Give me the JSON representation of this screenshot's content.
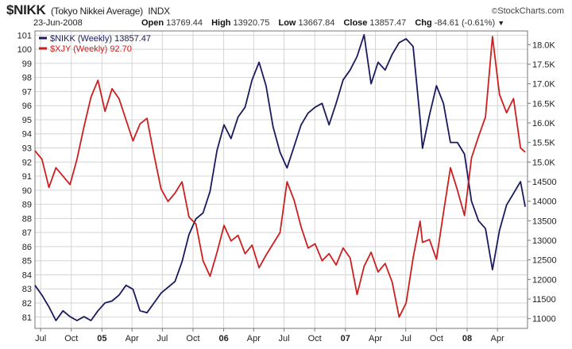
{
  "header": {
    "symbol": "$NIKK",
    "name": "(Tokyo Nikkei Average)",
    "exchange": "INDX",
    "date": "23-Jun-2008",
    "open_label": "Open",
    "open": "13769.44",
    "high_label": "High",
    "high": "13920.75",
    "low_label": "Low",
    "low": "13667.84",
    "close_label": "Close",
    "close": "13857.47",
    "chg_label": "Chg",
    "chg": "-84.61 (-0.61%)",
    "credit": "StockCharts.com"
  },
  "colors": {
    "nikk": "#1a1a5e",
    "xjy": "#cc1f1f",
    "grid": "#d4d4d4",
    "frame": "#777777"
  },
  "chart_data": {
    "type": "line",
    "x_axis": {
      "type": "date",
      "range": [
        "2004-06-14",
        "2008-06-30"
      ],
      "ticks": [
        {
          "date": "2004-07-01",
          "label": "Jul",
          "bold": false
        },
        {
          "date": "2004-10-01",
          "label": "Oct",
          "bold": false
        },
        {
          "date": "2005-01-01",
          "label": "05",
          "bold": true
        },
        {
          "date": "2005-04-01",
          "label": "Apr",
          "bold": false
        },
        {
          "date": "2005-07-01",
          "label": "Jul",
          "bold": false
        },
        {
          "date": "2005-10-01",
          "label": "Oct",
          "bold": false
        },
        {
          "date": "2006-01-01",
          "label": "06",
          "bold": true
        },
        {
          "date": "2006-04-01",
          "label": "Apr",
          "bold": false
        },
        {
          "date": "2006-07-01",
          "label": "Jul",
          "bold": false
        },
        {
          "date": "2006-10-01",
          "label": "Oct",
          "bold": false
        },
        {
          "date": "2007-01-01",
          "label": "07",
          "bold": true
        },
        {
          "date": "2007-04-01",
          "label": "Apr",
          "bold": false
        },
        {
          "date": "2007-07-01",
          "label": "Jul",
          "bold": false
        },
        {
          "date": "2007-10-01",
          "label": "Oct",
          "bold": false
        },
        {
          "date": "2008-01-01",
          "label": "08",
          "bold": true
        },
        {
          "date": "2008-04-01",
          "label": "Apr",
          "bold": false
        }
      ]
    },
    "left_axis": {
      "range": [
        80.2,
        101.3
      ],
      "ticks": [
        81,
        82,
        83,
        84,
        85,
        86,
        87,
        88,
        89,
        90,
        91,
        92,
        93,
        94,
        95,
        96,
        97,
        98,
        99,
        100,
        101
      ]
    },
    "right_axis": {
      "range": [
        10750,
        18350
      ],
      "ticks": [
        11000,
        11500,
        12000,
        12500,
        13000,
        13500,
        14000,
        14500,
        15000,
        15500,
        16000,
        16500,
        17000,
        17500,
        18000
      ],
      "tick_labels": [
        "11000",
        "11500",
        "12000",
        "12500",
        "13000",
        "13500",
        "14000",
        "14500",
        "15.0K",
        "15.5K",
        "16.0K",
        "16.5K",
        "17.0K",
        "17.5K",
        "18.0K"
      ]
    },
    "grid": true,
    "legend": {
      "placement": "top-left",
      "entries": [
        {
          "label": "$NIKK (Weekly) 13857.47"
        },
        {
          "label": "$XJY (Weekly) 92.70"
        }
      ]
    },
    "series": [
      {
        "name": "$NIKK (Weekly)",
        "axis": "right",
        "points": [
          [
            "2004-06-14",
            11850
          ],
          [
            "2004-07-05",
            11600
          ],
          [
            "2004-07-26",
            11300
          ],
          [
            "2004-08-16",
            10950
          ],
          [
            "2004-09-06",
            11200
          ],
          [
            "2004-09-27",
            11050
          ],
          [
            "2004-10-18",
            10950
          ],
          [
            "2004-11-08",
            11050
          ],
          [
            "2004-11-29",
            10950
          ],
          [
            "2004-12-20",
            11200
          ],
          [
            "2005-01-10",
            11400
          ],
          [
            "2005-01-31",
            11450
          ],
          [
            "2005-02-21",
            11600
          ],
          [
            "2005-03-14",
            11850
          ],
          [
            "2005-04-04",
            11750
          ],
          [
            "2005-04-25",
            11200
          ],
          [
            "2005-05-16",
            11150
          ],
          [
            "2005-06-06",
            11400
          ],
          [
            "2005-06-27",
            11650
          ],
          [
            "2005-07-18",
            11800
          ],
          [
            "2005-08-08",
            11950
          ],
          [
            "2005-08-29",
            12450
          ],
          [
            "2005-09-19",
            13150
          ],
          [
            "2005-10-10",
            13550
          ],
          [
            "2005-10-31",
            13700
          ],
          [
            "2005-11-21",
            14250
          ],
          [
            "2005-12-12",
            15300
          ],
          [
            "2006-01-02",
            15950
          ],
          [
            "2006-01-23",
            15600
          ],
          [
            "2006-02-13",
            16150
          ],
          [
            "2006-03-06",
            16400
          ],
          [
            "2006-03-27",
            17100
          ],
          [
            "2006-04-17",
            17550
          ],
          [
            "2006-05-08",
            16950
          ],
          [
            "2006-05-29",
            15900
          ],
          [
            "2006-06-19",
            15250
          ],
          [
            "2006-07-10",
            14850
          ],
          [
            "2006-07-31",
            15400
          ],
          [
            "2006-08-21",
            15950
          ],
          [
            "2006-09-11",
            16250
          ],
          [
            "2006-10-02",
            16400
          ],
          [
            "2006-10-23",
            16500
          ],
          [
            "2006-11-13",
            15950
          ],
          [
            "2006-12-04",
            16500
          ],
          [
            "2006-12-25",
            17100
          ],
          [
            "2007-01-15",
            17350
          ],
          [
            "2007-02-05",
            17700
          ],
          [
            "2007-02-26",
            18250
          ],
          [
            "2007-03-19",
            17000
          ],
          [
            "2007-04-09",
            17550
          ],
          [
            "2007-04-30",
            17350
          ],
          [
            "2007-05-21",
            17750
          ],
          [
            "2007-06-11",
            18050
          ],
          [
            "2007-07-02",
            18150
          ],
          [
            "2007-07-23",
            17950
          ],
          [
            "2007-08-13",
            16100
          ],
          [
            "2007-08-20",
            15350
          ],
          [
            "2007-09-10",
            16200
          ],
          [
            "2007-10-01",
            16950
          ],
          [
            "2007-10-22",
            16500
          ],
          [
            "2007-11-12",
            15500
          ],
          [
            "2007-12-03",
            15500
          ],
          [
            "2007-12-24",
            15200
          ],
          [
            "2008-01-14",
            14000
          ],
          [
            "2008-02-04",
            13500
          ],
          [
            "2008-02-25",
            13300
          ],
          [
            "2008-03-17",
            12250
          ],
          [
            "2008-04-07",
            13250
          ],
          [
            "2008-04-28",
            13900
          ],
          [
            "2008-05-19",
            14200
          ],
          [
            "2008-06-09",
            14500
          ],
          [
            "2008-06-23",
            13857.47
          ]
        ]
      },
      {
        "name": "$XJY (Weekly)",
        "axis": "left",
        "points": [
          [
            "2004-06-14",
            92.8
          ],
          [
            "2004-07-05",
            92.2
          ],
          [
            "2004-07-26",
            90.2
          ],
          [
            "2004-08-16",
            91.6
          ],
          [
            "2004-09-06",
            91.0
          ],
          [
            "2004-09-27",
            90.4
          ],
          [
            "2004-10-18",
            92.2
          ],
          [
            "2004-11-08",
            94.5
          ],
          [
            "2004-11-29",
            96.6
          ],
          [
            "2004-12-20",
            97.8
          ],
          [
            "2005-01-10",
            95.6
          ],
          [
            "2005-01-31",
            97.2
          ],
          [
            "2005-02-21",
            96.5
          ],
          [
            "2005-03-14",
            95.0
          ],
          [
            "2005-04-04",
            93.5
          ],
          [
            "2005-04-25",
            94.7
          ],
          [
            "2005-05-16",
            95.1
          ],
          [
            "2005-06-06",
            92.5
          ],
          [
            "2005-06-27",
            90.1
          ],
          [
            "2005-07-18",
            89.2
          ],
          [
            "2005-08-08",
            89.8
          ],
          [
            "2005-08-29",
            90.6
          ],
          [
            "2005-09-19",
            88.1
          ],
          [
            "2005-10-10",
            87.6
          ],
          [
            "2005-10-31",
            85.0
          ],
          [
            "2005-11-21",
            83.9
          ],
          [
            "2005-12-12",
            85.6
          ],
          [
            "2006-01-02",
            87.5
          ],
          [
            "2006-01-23",
            86.4
          ],
          [
            "2006-02-13",
            86.8
          ],
          [
            "2006-03-06",
            85.5
          ],
          [
            "2006-03-27",
            86.1
          ],
          [
            "2006-04-17",
            84.5
          ],
          [
            "2006-05-08",
            85.4
          ],
          [
            "2006-05-29",
            86.2
          ],
          [
            "2006-06-19",
            87.0
          ],
          [
            "2006-07-10",
            90.6
          ],
          [
            "2006-07-31",
            89.3
          ],
          [
            "2006-08-21",
            87.4
          ],
          [
            "2006-09-11",
            85.9
          ],
          [
            "2006-10-02",
            86.2
          ],
          [
            "2006-10-23",
            85.0
          ],
          [
            "2006-11-13",
            85.5
          ],
          [
            "2006-12-04",
            84.7
          ],
          [
            "2006-12-25",
            85.9
          ],
          [
            "2007-01-15",
            85.2
          ],
          [
            "2007-02-05",
            82.6
          ],
          [
            "2007-02-26",
            84.6
          ],
          [
            "2007-03-19",
            85.6
          ],
          [
            "2007-04-09",
            84.2
          ],
          [
            "2007-04-30",
            84.8
          ],
          [
            "2007-05-21",
            83.5
          ],
          [
            "2007-06-11",
            81.0
          ],
          [
            "2007-07-02",
            82.0
          ],
          [
            "2007-07-23",
            85.2
          ],
          [
            "2007-08-13",
            87.8
          ],
          [
            "2007-08-20",
            86.3
          ],
          [
            "2007-09-10",
            86.5
          ],
          [
            "2007-10-01",
            85.1
          ],
          [
            "2007-10-22",
            88.4
          ],
          [
            "2007-11-12",
            91.6
          ],
          [
            "2007-12-03",
            90.0
          ],
          [
            "2007-12-24",
            88.2
          ],
          [
            "2008-01-14",
            92.3
          ],
          [
            "2008-02-04",
            93.8
          ],
          [
            "2008-02-25",
            95.2
          ],
          [
            "2008-03-17",
            100.9
          ],
          [
            "2008-04-07",
            96.8
          ],
          [
            "2008-04-28",
            95.5
          ],
          [
            "2008-05-19",
            96.5
          ],
          [
            "2008-06-09",
            93.0
          ],
          [
            "2008-06-23",
            92.7
          ]
        ]
      }
    ]
  }
}
